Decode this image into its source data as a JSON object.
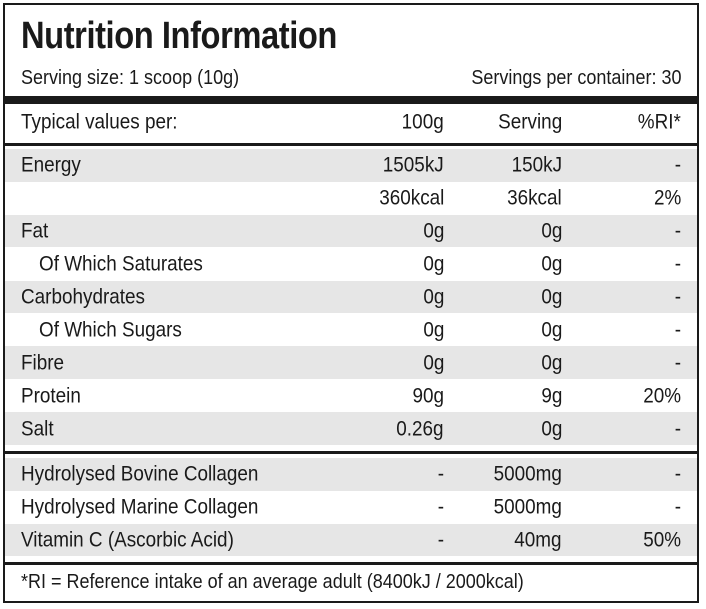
{
  "title": "Nutrition Information",
  "serving_size": "Serving size: 1 scoop (10g)",
  "servings_per_container": "Servings per container: 30",
  "header": {
    "label": "Typical values per:",
    "per100": "100g",
    "serving": "Serving",
    "ri": "%RI*"
  },
  "nutrients": [
    {
      "label": "Energy",
      "per100": "1505kJ",
      "serving": "150kJ",
      "ri": "-",
      "indent": false,
      "shade": true
    },
    {
      "label": "",
      "per100": "360kcal",
      "serving": "36kcal",
      "ri": "2%",
      "indent": false,
      "shade": false
    },
    {
      "label": "Fat",
      "per100": "0g",
      "serving": "0g",
      "ri": "-",
      "indent": false,
      "shade": true
    },
    {
      "label": "Of Which Saturates",
      "per100": "0g",
      "serving": "0g",
      "ri": "-",
      "indent": true,
      "shade": false
    },
    {
      "label": "Carbohydrates",
      "per100": "0g",
      "serving": "0g",
      "ri": "-",
      "indent": false,
      "shade": true
    },
    {
      "label": "Of Which Sugars",
      "per100": "0g",
      "serving": "0g",
      "ri": "-",
      "indent": true,
      "shade": false
    },
    {
      "label": "Fibre",
      "per100": "0g",
      "serving": "0g",
      "ri": "-",
      "indent": false,
      "shade": true
    },
    {
      "label": "Protein",
      "per100": "90g",
      "serving": "9g",
      "ri": "20%",
      "indent": false,
      "shade": false
    },
    {
      "label": "Salt",
      "per100": "0.26g",
      "serving": "0g",
      "ri": "-",
      "indent": false,
      "shade": true
    }
  ],
  "actives": [
    {
      "label": "Hydrolysed Bovine Collagen",
      "per100": "-",
      "serving": "5000mg",
      "ri": "-",
      "shade": true
    },
    {
      "label": "Hydrolysed Marine Collagen",
      "per100": "-",
      "serving": "5000mg",
      "ri": "-",
      "shade": false
    },
    {
      "label": "Vitamin C (Ascorbic Acid)",
      "per100": "-",
      "serving": "40mg",
      "ri": "50%",
      "shade": true
    }
  ],
  "footnote": "*RI = Reference intake of an average adult (8400kJ / 2000kcal)"
}
